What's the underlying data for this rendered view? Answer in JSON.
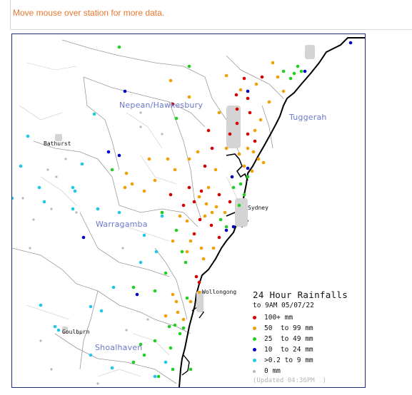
{
  "header": {
    "hint": "Move mouse over station for more data."
  },
  "map": {
    "regions": [
      {
        "label": "Nepean/Hawkesbury",
        "name": "region-nepean-hawkesbury"
      },
      {
        "label": "Tuggerah",
        "name": "region-tuggerah"
      },
      {
        "label": "Warragamba",
        "name": "region-warragamba"
      },
      {
        "label": "Shoalhaven",
        "name": "region-shoalhaven"
      }
    ],
    "towns": [
      {
        "label": "Bathurst",
        "name": "town-bathurst"
      },
      {
        "label": "Sydney",
        "name": "town-sydney"
      },
      {
        "label": "Wollongong",
        "name": "town-wollongong"
      },
      {
        "label": "Goulburn",
        "name": "town-goulburn"
      }
    ]
  },
  "legend": {
    "title": "24 Hour Rainfalls",
    "subtitle": "to 9AM 05/07/22",
    "items": [
      {
        "label": "100+ mm",
        "color": "#d40000"
      },
      {
        "label": "50  to 99 mm",
        "color": "#f0a000"
      },
      {
        "label": "25  to 49 mm",
        "color": "#20d020"
      },
      {
        "label": "10  to 24 mm",
        "color": "#0000c8"
      },
      {
        "label": ">0.2 to 9 mm",
        "color": "#20c8e8"
      },
      {
        "label": "0 mm",
        "color": "#b8b8b8"
      }
    ],
    "updated": "(Updated 04:36PM  )"
  }
}
